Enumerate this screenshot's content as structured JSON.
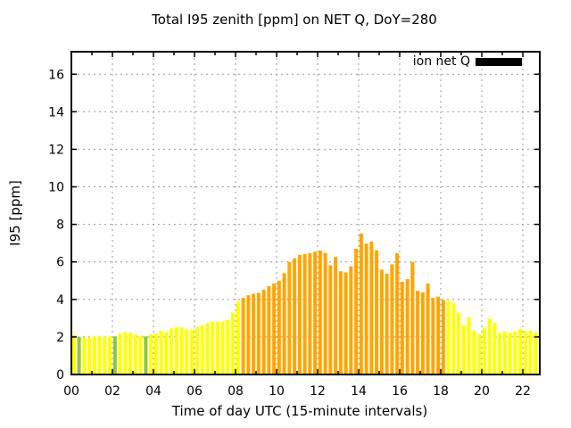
{
  "chart_data": {
    "type": "bar",
    "title": "Total I95 zenith [ppm] on NET Q, DoY=280",
    "xlabel": "Time of day UTC (15-minute intervals)",
    "ylabel": "I95 [ppm]",
    "legend": {
      "label": "ion net Q",
      "swatch_color": "#000000",
      "position": "top-right-inside"
    },
    "grid": true,
    "ylim": [
      0,
      17.2
    ],
    "xlim_hours": [
      0,
      22.83
    ],
    "interval_minutes": 15,
    "yticks": [
      0,
      2,
      4,
      6,
      8,
      10,
      12,
      14,
      16
    ],
    "xticks": [
      {
        "hour": 0,
        "label": "00"
      },
      {
        "hour": 2,
        "label": "02"
      },
      {
        "hour": 4,
        "label": "04"
      },
      {
        "hour": 6,
        "label": "06"
      },
      {
        "hour": 8,
        "label": "08"
      },
      {
        "hour": 10,
        "label": "10"
      },
      {
        "hour": 12,
        "label": "12"
      },
      {
        "hour": 14,
        "label": "14"
      },
      {
        "hour": 16,
        "label": "16"
      },
      {
        "hour": 18,
        "label": "18"
      },
      {
        "hour": 20,
        "label": "20"
      },
      {
        "hour": 22,
        "label": "22"
      }
    ],
    "palette": {
      "yellow": "#FFFF00",
      "orange": "#FFA500",
      "green": "#8CC63F"
    },
    "bars": [
      [
        "00:00",
        2.1,
        "yellow"
      ],
      [
        "00:15",
        2.0,
        "green"
      ],
      [
        "00:30",
        1.97,
        "yellow"
      ],
      [
        "00:45",
        1.97,
        "yellow"
      ],
      [
        "01:00",
        2.03,
        "yellow"
      ],
      [
        "01:15",
        2.01,
        "yellow"
      ],
      [
        "01:30",
        2.01,
        "yellow"
      ],
      [
        "01:45",
        2.03,
        "yellow"
      ],
      [
        "02:00",
        2.03,
        "green"
      ],
      [
        "02:15",
        2.19,
        "yellow"
      ],
      [
        "02:30",
        2.27,
        "yellow"
      ],
      [
        "02:45",
        2.22,
        "yellow"
      ],
      [
        "03:00",
        2.14,
        "yellow"
      ],
      [
        "03:15",
        2.06,
        "yellow"
      ],
      [
        "03:30",
        2.03,
        "green"
      ],
      [
        "03:45",
        2.14,
        "yellow"
      ],
      [
        "04:00",
        2.17,
        "yellow"
      ],
      [
        "04:15",
        2.33,
        "yellow"
      ],
      [
        "04:30",
        2.25,
        "yellow"
      ],
      [
        "04:45",
        2.46,
        "yellow"
      ],
      [
        "05:00",
        2.51,
        "yellow"
      ],
      [
        "05:15",
        2.51,
        "yellow"
      ],
      [
        "05:30",
        2.43,
        "yellow"
      ],
      [
        "05:45",
        2.38,
        "yellow"
      ],
      [
        "06:00",
        2.51,
        "yellow"
      ],
      [
        "06:15",
        2.62,
        "yellow"
      ],
      [
        "06:30",
        2.73,
        "yellow"
      ],
      [
        "06:45",
        2.82,
        "yellow"
      ],
      [
        "07:00",
        2.82,
        "yellow"
      ],
      [
        "07:15",
        2.82,
        "yellow"
      ],
      [
        "07:30",
        2.9,
        "yellow"
      ],
      [
        "07:45",
        3.3,
        "yellow"
      ],
      [
        "08:00",
        3.88,
        "yellow"
      ],
      [
        "08:15",
        4.08,
        "orange"
      ],
      [
        "08:30",
        4.22,
        "orange"
      ],
      [
        "08:45",
        4.3,
        "orange"
      ],
      [
        "09:00",
        4.35,
        "orange"
      ],
      [
        "09:15",
        4.52,
        "orange"
      ],
      [
        "09:30",
        4.71,
        "orange"
      ],
      [
        "09:45",
        4.85,
        "orange"
      ],
      [
        "10:00",
        5.0,
        "orange"
      ],
      [
        "10:15",
        5.4,
        "orange"
      ],
      [
        "10:30",
        6.0,
        "orange"
      ],
      [
        "10:45",
        6.19,
        "orange"
      ],
      [
        "11:00",
        6.38,
        "orange"
      ],
      [
        "11:15",
        6.42,
        "orange"
      ],
      [
        "11:30",
        6.46,
        "orange"
      ],
      [
        "11:45",
        6.54,
        "orange"
      ],
      [
        "12:00",
        6.6,
        "orange"
      ],
      [
        "12:15",
        6.48,
        "orange"
      ],
      [
        "12:30",
        5.82,
        "orange"
      ],
      [
        "12:45",
        6.26,
        "orange"
      ],
      [
        "13:00",
        5.5,
        "orange"
      ],
      [
        "13:15",
        5.44,
        "orange"
      ],
      [
        "13:30",
        5.76,
        "orange"
      ],
      [
        "13:45",
        6.7,
        "orange"
      ],
      [
        "14:00",
        7.51,
        "orange"
      ],
      [
        "14:15",
        6.97,
        "orange"
      ],
      [
        "14:30",
        7.08,
        "orange"
      ],
      [
        "14:45",
        6.62,
        "orange"
      ],
      [
        "15:00",
        5.58,
        "orange"
      ],
      [
        "15:15",
        5.37,
        "orange"
      ],
      [
        "15:30",
        5.87,
        "orange"
      ],
      [
        "15:45",
        6.46,
        "orange"
      ],
      [
        "16:00",
        4.94,
        "orange"
      ],
      [
        "16:15",
        5.08,
        "orange"
      ],
      [
        "16:30",
        6.0,
        "orange"
      ],
      [
        "16:45",
        4.46,
        "orange"
      ],
      [
        "17:00",
        4.37,
        "orange"
      ],
      [
        "17:15",
        4.84,
        "orange"
      ],
      [
        "17:30",
        4.08,
        "orange"
      ],
      [
        "17:45",
        4.15,
        "orange"
      ],
      [
        "18:00",
        3.97,
        "orange"
      ],
      [
        "18:15",
        3.94,
        "yellow"
      ],
      [
        "18:30",
        3.81,
        "yellow"
      ],
      [
        "18:45",
        3.3,
        "yellow"
      ],
      [
        "19:00",
        2.62,
        "yellow"
      ],
      [
        "19:15",
        3.05,
        "yellow"
      ],
      [
        "19:30",
        2.33,
        "yellow"
      ],
      [
        "19:45",
        2.14,
        "yellow"
      ],
      [
        "20:00",
        2.46,
        "yellow"
      ],
      [
        "20:15",
        2.97,
        "yellow"
      ],
      [
        "20:30",
        2.75,
        "yellow"
      ],
      [
        "20:45",
        2.22,
        "yellow"
      ],
      [
        "21:00",
        2.3,
        "yellow"
      ],
      [
        "21:15",
        2.22,
        "yellow"
      ],
      [
        "21:30",
        2.3,
        "yellow"
      ],
      [
        "21:45",
        2.41,
        "yellow"
      ],
      [
        "22:00",
        2.33,
        "yellow"
      ],
      [
        "22:15",
        2.33,
        "yellow"
      ],
      [
        "22:30",
        2.25,
        "yellow"
      ]
    ]
  }
}
